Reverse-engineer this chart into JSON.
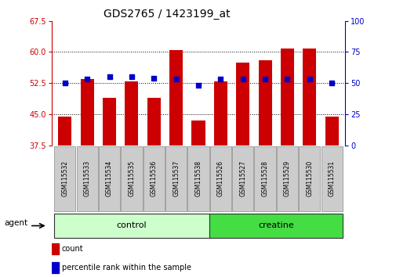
{
  "title": "GDS2765 / 1423199_at",
  "samples": [
    "GSM115532",
    "GSM115533",
    "GSM115534",
    "GSM115535",
    "GSM115536",
    "GSM115537",
    "GSM115538",
    "GSM115526",
    "GSM115527",
    "GSM115528",
    "GSM115529",
    "GSM115530",
    "GSM115531"
  ],
  "count_values": [
    44.5,
    53.5,
    49.0,
    53.0,
    49.0,
    60.5,
    43.5,
    53.0,
    57.5,
    58.0,
    60.8,
    60.8,
    44.5
  ],
  "percentile_values": [
    50,
    53,
    55,
    55,
    54,
    53,
    48,
    53,
    53,
    53,
    53,
    53,
    50
  ],
  "ylim_left": [
    37.5,
    67.5
  ],
  "ylim_right": [
    0,
    100
  ],
  "yticks_left": [
    37.5,
    45.0,
    52.5,
    60.0,
    67.5
  ],
  "yticks_right": [
    0,
    25,
    50,
    75,
    100
  ],
  "bar_color": "#cc0000",
  "dot_color": "#0000cc",
  "bar_width": 0.6,
  "control_color": "#ccffcc",
  "creatine_color": "#44dd44",
  "label_bg_color": "#cccccc",
  "agent_label": "agent",
  "legend_count_label": "count",
  "legend_percentile_label": "percentile rank within the sample",
  "left_axis_color": "#cc0000",
  "right_axis_color": "#0000cc",
  "title_fontsize": 10,
  "tick_fontsize": 7,
  "sample_fontsize": 5.5,
  "group_fontsize": 8,
  "legend_fontsize": 7
}
